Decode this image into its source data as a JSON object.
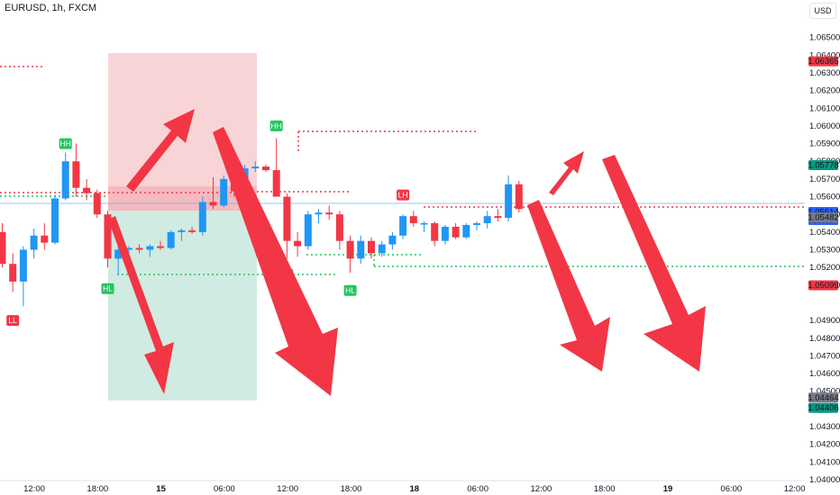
{
  "header": {
    "symbol": "EURUSD, 1h, FXCM",
    "currency_button": "USD"
  },
  "colors": {
    "up": "#2196f3",
    "down": "#f23645",
    "arrow": "#f23645",
    "hl_label": "#22c55e",
    "lh_label": "#f23645",
    "stop_zone": "#f8cdd0",
    "target_zone": "#cbe9df",
    "price_blue_badge": "#2962ff",
    "price_teal_badge": "#089981",
    "price_gray_badge": "#787b86"
  },
  "chart_data": {
    "type": "candlestick",
    "title": "EURUSD, 1h, FXCM",
    "ylim": [
      1.04,
      1.066
    ],
    "y_ticks": [
      "1.06500",
      "1.06400",
      "1.06300",
      "1.06200",
      "1.06100",
      "1.06000",
      "1.05900",
      "1.05800",
      "1.05700",
      "1.05600",
      "1.05500",
      "1.05400",
      "1.05300",
      "1.05200",
      "1.05100",
      "1.04900",
      "1.04800",
      "1.04700",
      "1.04600",
      "1.04500",
      "1.04300",
      "1.04200",
      "1.04100",
      "1.04000"
    ],
    "x_ticks": [
      "12:00",
      "18:00",
      "15",
      "06:00",
      "12:00",
      "18:00",
      "18",
      "06:00",
      "12:00",
      "18:00",
      "19",
      "06:00",
      "12:00"
    ],
    "candles": [
      {
        "o": 1.054,
        "h": 1.0545,
        "l": 1.052,
        "c": 1.0522
      },
      {
        "o": 1.0522,
        "h": 1.0528,
        "l": 1.0506,
        "c": 1.0512
      },
      {
        "o": 1.0512,
        "h": 1.0532,
        "l": 1.0498,
        "c": 1.053
      },
      {
        "o": 1.053,
        "h": 1.0542,
        "l": 1.0525,
        "c": 1.0538
      },
      {
        "o": 1.0538,
        "h": 1.0545,
        "l": 1.053,
        "c": 1.0534
      },
      {
        "o": 1.0534,
        "h": 1.0561,
        "l": 1.0533,
        "c": 1.0559
      },
      {
        "o": 1.0559,
        "h": 1.0585,
        "l": 1.0558,
        "c": 1.058
      },
      {
        "o": 1.058,
        "h": 1.059,
        "l": 1.056,
        "c": 1.0565
      },
      {
        "o": 1.0565,
        "h": 1.057,
        "l": 1.0558,
        "c": 1.0562
      },
      {
        "o": 1.0562,
        "h": 1.0564,
        "l": 1.0548,
        "c": 1.055
      },
      {
        "o": 1.055,
        "h": 1.0552,
        "l": 1.052,
        "c": 1.0525
      },
      {
        "o": 1.0525,
        "h": 1.0533,
        "l": 1.0516,
        "c": 1.053
      },
      {
        "o": 1.053,
        "h": 1.0532,
        "l": 1.0526,
        "c": 1.0531
      },
      {
        "o": 1.0531,
        "h": 1.0533,
        "l": 1.0528,
        "c": 1.053
      },
      {
        "o": 1.053,
        "h": 1.0533,
        "l": 1.0526,
        "c": 1.0532
      },
      {
        "o": 1.0532,
        "h": 1.0535,
        "l": 1.053,
        "c": 1.0531
      },
      {
        "o": 1.0531,
        "h": 1.0541,
        "l": 1.053,
        "c": 1.054
      },
      {
        "o": 1.054,
        "h": 1.0542,
        "l": 1.0535,
        "c": 1.0541
      },
      {
        "o": 1.0541,
        "h": 1.0543,
        "l": 1.0539,
        "c": 1.054
      },
      {
        "o": 1.054,
        "h": 1.056,
        "l": 1.0538,
        "c": 1.0557
      },
      {
        "o": 1.0557,
        "h": 1.0571,
        "l": 1.0553,
        "c": 1.0555
      },
      {
        "o": 1.0555,
        "h": 1.0572,
        "l": 1.0554,
        "c": 1.057
      },
      {
        "o": 1.057,
        "h": 1.0576,
        "l": 1.056,
        "c": 1.0563
      },
      {
        "o": 1.0563,
        "h": 1.0578,
        "l": 1.056,
        "c": 1.0576
      },
      {
        "o": 1.0576,
        "h": 1.058,
        "l": 1.0574,
        "c": 1.0577
      },
      {
        "o": 1.0577,
        "h": 1.0578,
        "l": 1.0574,
        "c": 1.0575
      },
      {
        "o": 1.0575,
        "h": 1.0593,
        "l": 1.0562,
        "c": 1.056
      },
      {
        "o": 1.056,
        "h": 1.0562,
        "l": 1.0525,
        "c": 1.0535
      },
      {
        "o": 1.0535,
        "h": 1.054,
        "l": 1.0526,
        "c": 1.0532
      },
      {
        "o": 1.0532,
        "h": 1.0552,
        "l": 1.053,
        "c": 1.055
      },
      {
        "o": 1.055,
        "h": 1.0553,
        "l": 1.0545,
        "c": 1.0551
      },
      {
        "o": 1.0551,
        "h": 1.0555,
        "l": 1.0547,
        "c": 1.055
      },
      {
        "o": 1.055,
        "h": 1.0552,
        "l": 1.053,
        "c": 1.0535
      },
      {
        "o": 1.0535,
        "h": 1.0538,
        "l": 1.0517,
        "c": 1.0525
      },
      {
        "o": 1.0525,
        "h": 1.0538,
        "l": 1.0522,
        "c": 1.0535
      },
      {
        "o": 1.0535,
        "h": 1.0537,
        "l": 1.0525,
        "c": 1.0528
      },
      {
        "o": 1.0528,
        "h": 1.0535,
        "l": 1.0526,
        "c": 1.0533
      },
      {
        "o": 1.0533,
        "h": 1.054,
        "l": 1.053,
        "c": 1.0538
      },
      {
        "o": 1.0538,
        "h": 1.055,
        "l": 1.0536,
        "c": 1.0549
      },
      {
        "o": 1.0549,
        "h": 1.0552,
        "l": 1.0543,
        "c": 1.0545
      },
      {
        "o": 1.0545,
        "h": 1.0546,
        "l": 1.054,
        "c": 1.0545
      },
      {
        "o": 1.0545,
        "h": 1.0546,
        "l": 1.0532,
        "c": 1.0535
      },
      {
        "o": 1.0535,
        "h": 1.0544,
        "l": 1.0533,
        "c": 1.0543
      },
      {
        "o": 1.0543,
        "h": 1.0545,
        "l": 1.0536,
        "c": 1.0537
      },
      {
        "o": 1.0537,
        "h": 1.0545,
        "l": 1.0536,
        "c": 1.0544
      },
      {
        "o": 1.0544,
        "h": 1.0546,
        "l": 1.0541,
        "c": 1.0545
      },
      {
        "o": 1.0545,
        "h": 1.0552,
        "l": 1.0542,
        "c": 1.0549
      },
      {
        "o": 1.0549,
        "h": 1.0553,
        "l": 1.0546,
        "c": 1.0548
      },
      {
        "o": 1.0548,
        "h": 1.0572,
        "l": 1.0546,
        "c": 1.0567
      },
      {
        "o": 1.0567,
        "h": 1.0569,
        "l": 1.0551,
        "c": 1.0553
      }
    ],
    "price_labels": [
      {
        "text": "1.06365",
        "value": 1.06365,
        "color": "#f23645"
      },
      {
        "text": "1.05778",
        "value": 1.05778,
        "color": "#089981"
      },
      {
        "text": "1.05514",
        "sub": "36:35",
        "value": 1.05514,
        "color": "#2962ff"
      },
      {
        "text": "1.05482",
        "value": 1.05482,
        "color": "#787b86"
      },
      {
        "text": "1.05099",
        "value": 1.05099,
        "color": "#f23645"
      },
      {
        "text": "1.04464",
        "value": 1.04464,
        "color": "#787b86"
      },
      {
        "text": "1.04406",
        "value": 1.04406,
        "color": "#089981"
      }
    ],
    "swing_labels": [
      {
        "text": "LL",
        "color": "#f23645",
        "index": 1,
        "value": 1.049
      },
      {
        "text": "HH",
        "color": "#22c55e",
        "index": 6,
        "value": 1.059
      },
      {
        "text": "HL",
        "color": "#22c55e",
        "index": 10,
        "value": 1.0508
      },
      {
        "text": "HH",
        "color": "#22c55e",
        "index": 26,
        "value": 1.06
      },
      {
        "text": "HL",
        "color": "#22c55e",
        "index": 27,
        "value": 1.0516
      },
      {
        "text": "HL",
        "color": "#22c55e",
        "index": 33,
        "value": 1.0507
      },
      {
        "text": "LH",
        "color": "#f23645",
        "index": 38,
        "value": 1.0561
      }
    ]
  }
}
